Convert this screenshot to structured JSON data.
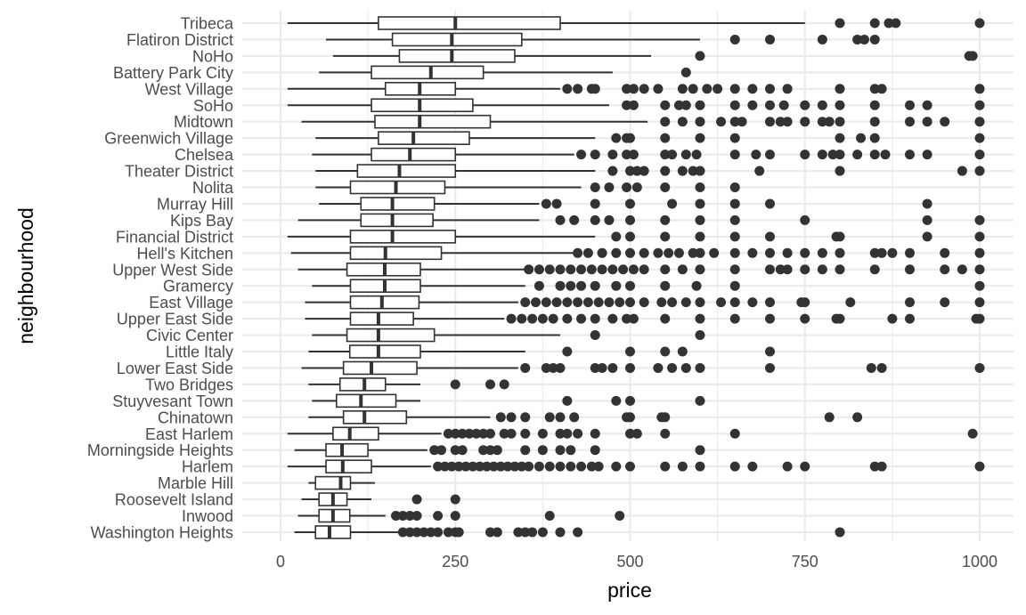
{
  "chart_data": {
    "type": "boxplot",
    "orientation": "horizontal",
    "xlabel": "price",
    "ylabel": "neighbourhood",
    "xlim": [
      0,
      1000
    ],
    "x_ticks": [
      0,
      250,
      500,
      750,
      1000
    ],
    "x_tick_labels": [
      "0",
      "250",
      "500",
      "750",
      "1000"
    ],
    "grid": true,
    "categories": [
      {
        "name": "Tribeca",
        "whisker_low": 10,
        "q1": 140,
        "median": 250,
        "q3": 400,
        "whisker_high": 750,
        "outliers": [
          800,
          850,
          870,
          880,
          1000
        ]
      },
      {
        "name": "Flatiron District",
        "whisker_low": 65,
        "q1": 160,
        "median": 245,
        "q3": 345,
        "whisker_high": 600,
        "outliers": [
          650,
          700,
          775,
          825,
          835,
          850
        ]
      },
      {
        "name": "NoHo",
        "whisker_low": 75,
        "q1": 170,
        "median": 245,
        "q3": 335,
        "whisker_high": 530,
        "outliers": [
          600,
          985,
          990
        ]
      },
      {
        "name": "Battery Park City",
        "whisker_low": 55,
        "q1": 130,
        "median": 215,
        "q3": 290,
        "whisker_high": 475,
        "outliers": [
          580
        ]
      },
      {
        "name": "West Village",
        "whisker_low": 10,
        "q1": 150,
        "median": 199,
        "q3": 250,
        "whisker_high": 400,
        "outliers": [
          410,
          425,
          445,
          450,
          495,
          505,
          520,
          540,
          575,
          590,
          610,
          625,
          650,
          675,
          700,
          725,
          800,
          850,
          860,
          1000
        ]
      },
      {
        "name": "SoHo",
        "whisker_low": 10,
        "q1": 130,
        "median": 199,
        "q3": 275,
        "whisker_high": 470,
        "outliers": [
          495,
          505,
          550,
          570,
          580,
          600,
          650,
          675,
          700,
          720,
          750,
          775,
          800,
          850,
          900,
          925,
          1000
        ]
      },
      {
        "name": "Midtown",
        "whisker_low": 30,
        "q1": 135,
        "median": 199,
        "q3": 300,
        "whisker_high": 525,
        "outliers": [
          550,
          575,
          600,
          630,
          650,
          660,
          700,
          715,
          725,
          750,
          775,
          785,
          800,
          850,
          900,
          925,
          950,
          1000
        ]
      },
      {
        "name": "Greenwich Village",
        "whisker_low": 50,
        "q1": 140,
        "median": 190,
        "q3": 270,
        "whisker_high": 450,
        "outliers": [
          480,
          495,
          500,
          550,
          600,
          650,
          800,
          830,
          850,
          1000
        ]
      },
      {
        "name": "Chelsea",
        "whisker_low": 45,
        "q1": 130,
        "median": 185,
        "q3": 250,
        "whisker_high": 420,
        "outliers": [
          430,
          450,
          475,
          495,
          505,
          550,
          560,
          580,
          595,
          650,
          680,
          700,
          750,
          775,
          790,
          800,
          825,
          850,
          865,
          900,
          925,
          1000
        ]
      },
      {
        "name": "Theater District",
        "whisker_low": 50,
        "q1": 110,
        "median": 170,
        "q3": 250,
        "whisker_high": 450,
        "outliers": [
          475,
          500,
          510,
          520,
          550,
          575,
          590,
          600,
          685,
          800,
          975,
          1000
        ]
      },
      {
        "name": "Nolita",
        "whisker_low": 50,
        "q1": 100,
        "median": 165,
        "q3": 235,
        "whisker_high": 430,
        "outliers": [
          450,
          470,
          495,
          510,
          550,
          600,
          650
        ]
      },
      {
        "name": "Murray Hill",
        "whisker_low": 55,
        "q1": 115,
        "median": 160,
        "q3": 220,
        "whisker_high": 370,
        "outliers": [
          380,
          395,
          450,
          500,
          560,
          600,
          650,
          700,
          925
        ]
      },
      {
        "name": "Kips Bay",
        "whisker_low": 25,
        "q1": 115,
        "median": 160,
        "q3": 218,
        "whisker_high": 370,
        "outliers": [
          400,
          420,
          450,
          470,
          500,
          550,
          600,
          650,
          750,
          925,
          1000
        ]
      },
      {
        "name": "Financial District",
        "whisker_low": 10,
        "q1": 100,
        "median": 160,
        "q3": 250,
        "whisker_high": 450,
        "outliers": [
          480,
          500,
          550,
          600,
          650,
          700,
          795,
          800,
          925,
          1000
        ]
      },
      {
        "name": "Hell's Kitchen",
        "whisker_low": 15,
        "q1": 100,
        "median": 150,
        "q3": 230,
        "whisker_high": 420,
        "outliers": [
          425,
          440,
          460,
          480,
          500,
          520,
          540,
          555,
          570,
          590,
          600,
          620,
          650,
          675,
          700,
          725,
          750,
          775,
          800,
          850,
          860,
          875,
          900,
          950,
          1000
        ]
      },
      {
        "name": "Upper West Side",
        "whisker_low": 25,
        "q1": 95,
        "median": 149,
        "q3": 200,
        "whisker_high": 350,
        "outliers": [
          355,
          370,
          385,
          400,
          415,
          430,
          445,
          460,
          475,
          490,
          505,
          520,
          550,
          575,
          600,
          650,
          700,
          715,
          725,
          750,
          775,
          800,
          850,
          900,
          950,
          975,
          1000
        ]
      },
      {
        "name": "Gramercy",
        "whisker_low": 45,
        "q1": 100,
        "median": 149,
        "q3": 200,
        "whisker_high": 350,
        "outliers": [
          370,
          400,
          415,
          430,
          450,
          480,
          500,
          550,
          595,
          650,
          1000
        ]
      },
      {
        "name": "East Village",
        "whisker_low": 35,
        "q1": 100,
        "median": 145,
        "q3": 198,
        "whisker_high": 340,
        "outliers": [
          350,
          365,
          380,
          395,
          410,
          425,
          440,
          455,
          470,
          485,
          500,
          520,
          545,
          560,
          580,
          600,
          630,
          650,
          675,
          700,
          745,
          750,
          815,
          900,
          950,
          1000
        ]
      },
      {
        "name": "Upper East Side",
        "whisker_low": 35,
        "q1": 100,
        "median": 140,
        "q3": 190,
        "whisker_high": 320,
        "outliers": [
          330,
          345,
          360,
          375,
          390,
          410,
          430,
          450,
          475,
          495,
          505,
          550,
          600,
          650,
          700,
          750,
          795,
          800,
          875,
          900,
          995,
          1000
        ]
      },
      {
        "name": "Civic Center",
        "whisker_low": 45,
        "q1": 95,
        "median": 140,
        "q3": 220,
        "whisker_high": 400,
        "outliers": [
          450,
          600
        ]
      },
      {
        "name": "Little Italy",
        "whisker_low": 40,
        "q1": 99,
        "median": 140,
        "q3": 200,
        "whisker_high": 350,
        "outliers": [
          410,
          500,
          550,
          575,
          700
        ]
      },
      {
        "name": "Lower East Side",
        "whisker_low": 30,
        "q1": 90,
        "median": 130,
        "q3": 195,
        "whisker_high": 340,
        "outliers": [
          350,
          380,
          390,
          400,
          450,
          460,
          475,
          500,
          540,
          560,
          580,
          600,
          700,
          845,
          860,
          1000
        ]
      },
      {
        "name": "Two Bridges",
        "whisker_low": 40,
        "q1": 85,
        "median": 120,
        "q3": 150,
        "whisker_high": 200,
        "outliers": [
          250,
          300,
          320
        ]
      },
      {
        "name": "Stuyvesant Town",
        "whisker_low": 45,
        "q1": 80,
        "median": 115,
        "q3": 165,
        "whisker_high": 200,
        "outliers": [
          410,
          480,
          500,
          600
        ]
      },
      {
        "name": "Chinatown",
        "whisker_low": 40,
        "q1": 90,
        "median": 120,
        "q3": 180,
        "whisker_high": 300,
        "outliers": [
          315,
          330,
          350,
          385,
          400,
          420,
          495,
          500,
          545,
          550,
          785,
          825
        ]
      },
      {
        "name": "East Harlem",
        "whisker_low": 10,
        "q1": 75,
        "median": 99,
        "q3": 140,
        "whisker_high": 230,
        "outliers": [
          240,
          250,
          260,
          270,
          280,
          290,
          300,
          320,
          330,
          350,
          375,
          400,
          410,
          425,
          450,
          500,
          510,
          550,
          650,
          990
        ]
      },
      {
        "name": "Morningside Heights",
        "whisker_low": 20,
        "q1": 65,
        "median": 88,
        "q3": 125,
        "whisker_high": 210,
        "outliers": [
          220,
          230,
          250,
          260,
          290,
          300,
          310,
          350,
          375,
          400,
          415,
          450,
          600
        ]
      },
      {
        "name": "Harlem",
        "whisker_low": 10,
        "q1": 65,
        "median": 89,
        "q3": 130,
        "whisker_high": 215,
        "outliers": [
          225,
          235,
          245,
          255,
          265,
          275,
          285,
          295,
          305,
          315,
          325,
          335,
          345,
          355,
          370,
          385,
          400,
          415,
          430,
          445,
          455,
          480,
          500,
          550,
          575,
          600,
          650,
          675,
          725,
          750,
          850,
          860,
          1000
        ]
      },
      {
        "name": "Marble Hill",
        "whisker_low": 40,
        "q1": 50,
        "median": 86,
        "q3": 100,
        "whisker_high": 135,
        "outliers": []
      },
      {
        "name": "Roosevelt Island",
        "whisker_low": 30,
        "q1": 55,
        "median": 75,
        "q3": 95,
        "whisker_high": 130,
        "outliers": [
          195,
          250
        ]
      },
      {
        "name": "Inwood",
        "whisker_low": 25,
        "q1": 55,
        "median": 75,
        "q3": 99,
        "whisker_high": 150,
        "outliers": [
          165,
          175,
          185,
          195,
          225,
          250,
          385,
          485
        ]
      },
      {
        "name": "Washington Heights",
        "whisker_low": 20,
        "q1": 50,
        "median": 70,
        "q3": 100,
        "whisker_high": 170,
        "outliers": [
          175,
          185,
          195,
          205,
          215,
          225,
          240,
          250,
          255,
          300,
          310,
          340,
          350,
          360,
          375,
          400,
          425,
          800
        ]
      }
    ]
  }
}
